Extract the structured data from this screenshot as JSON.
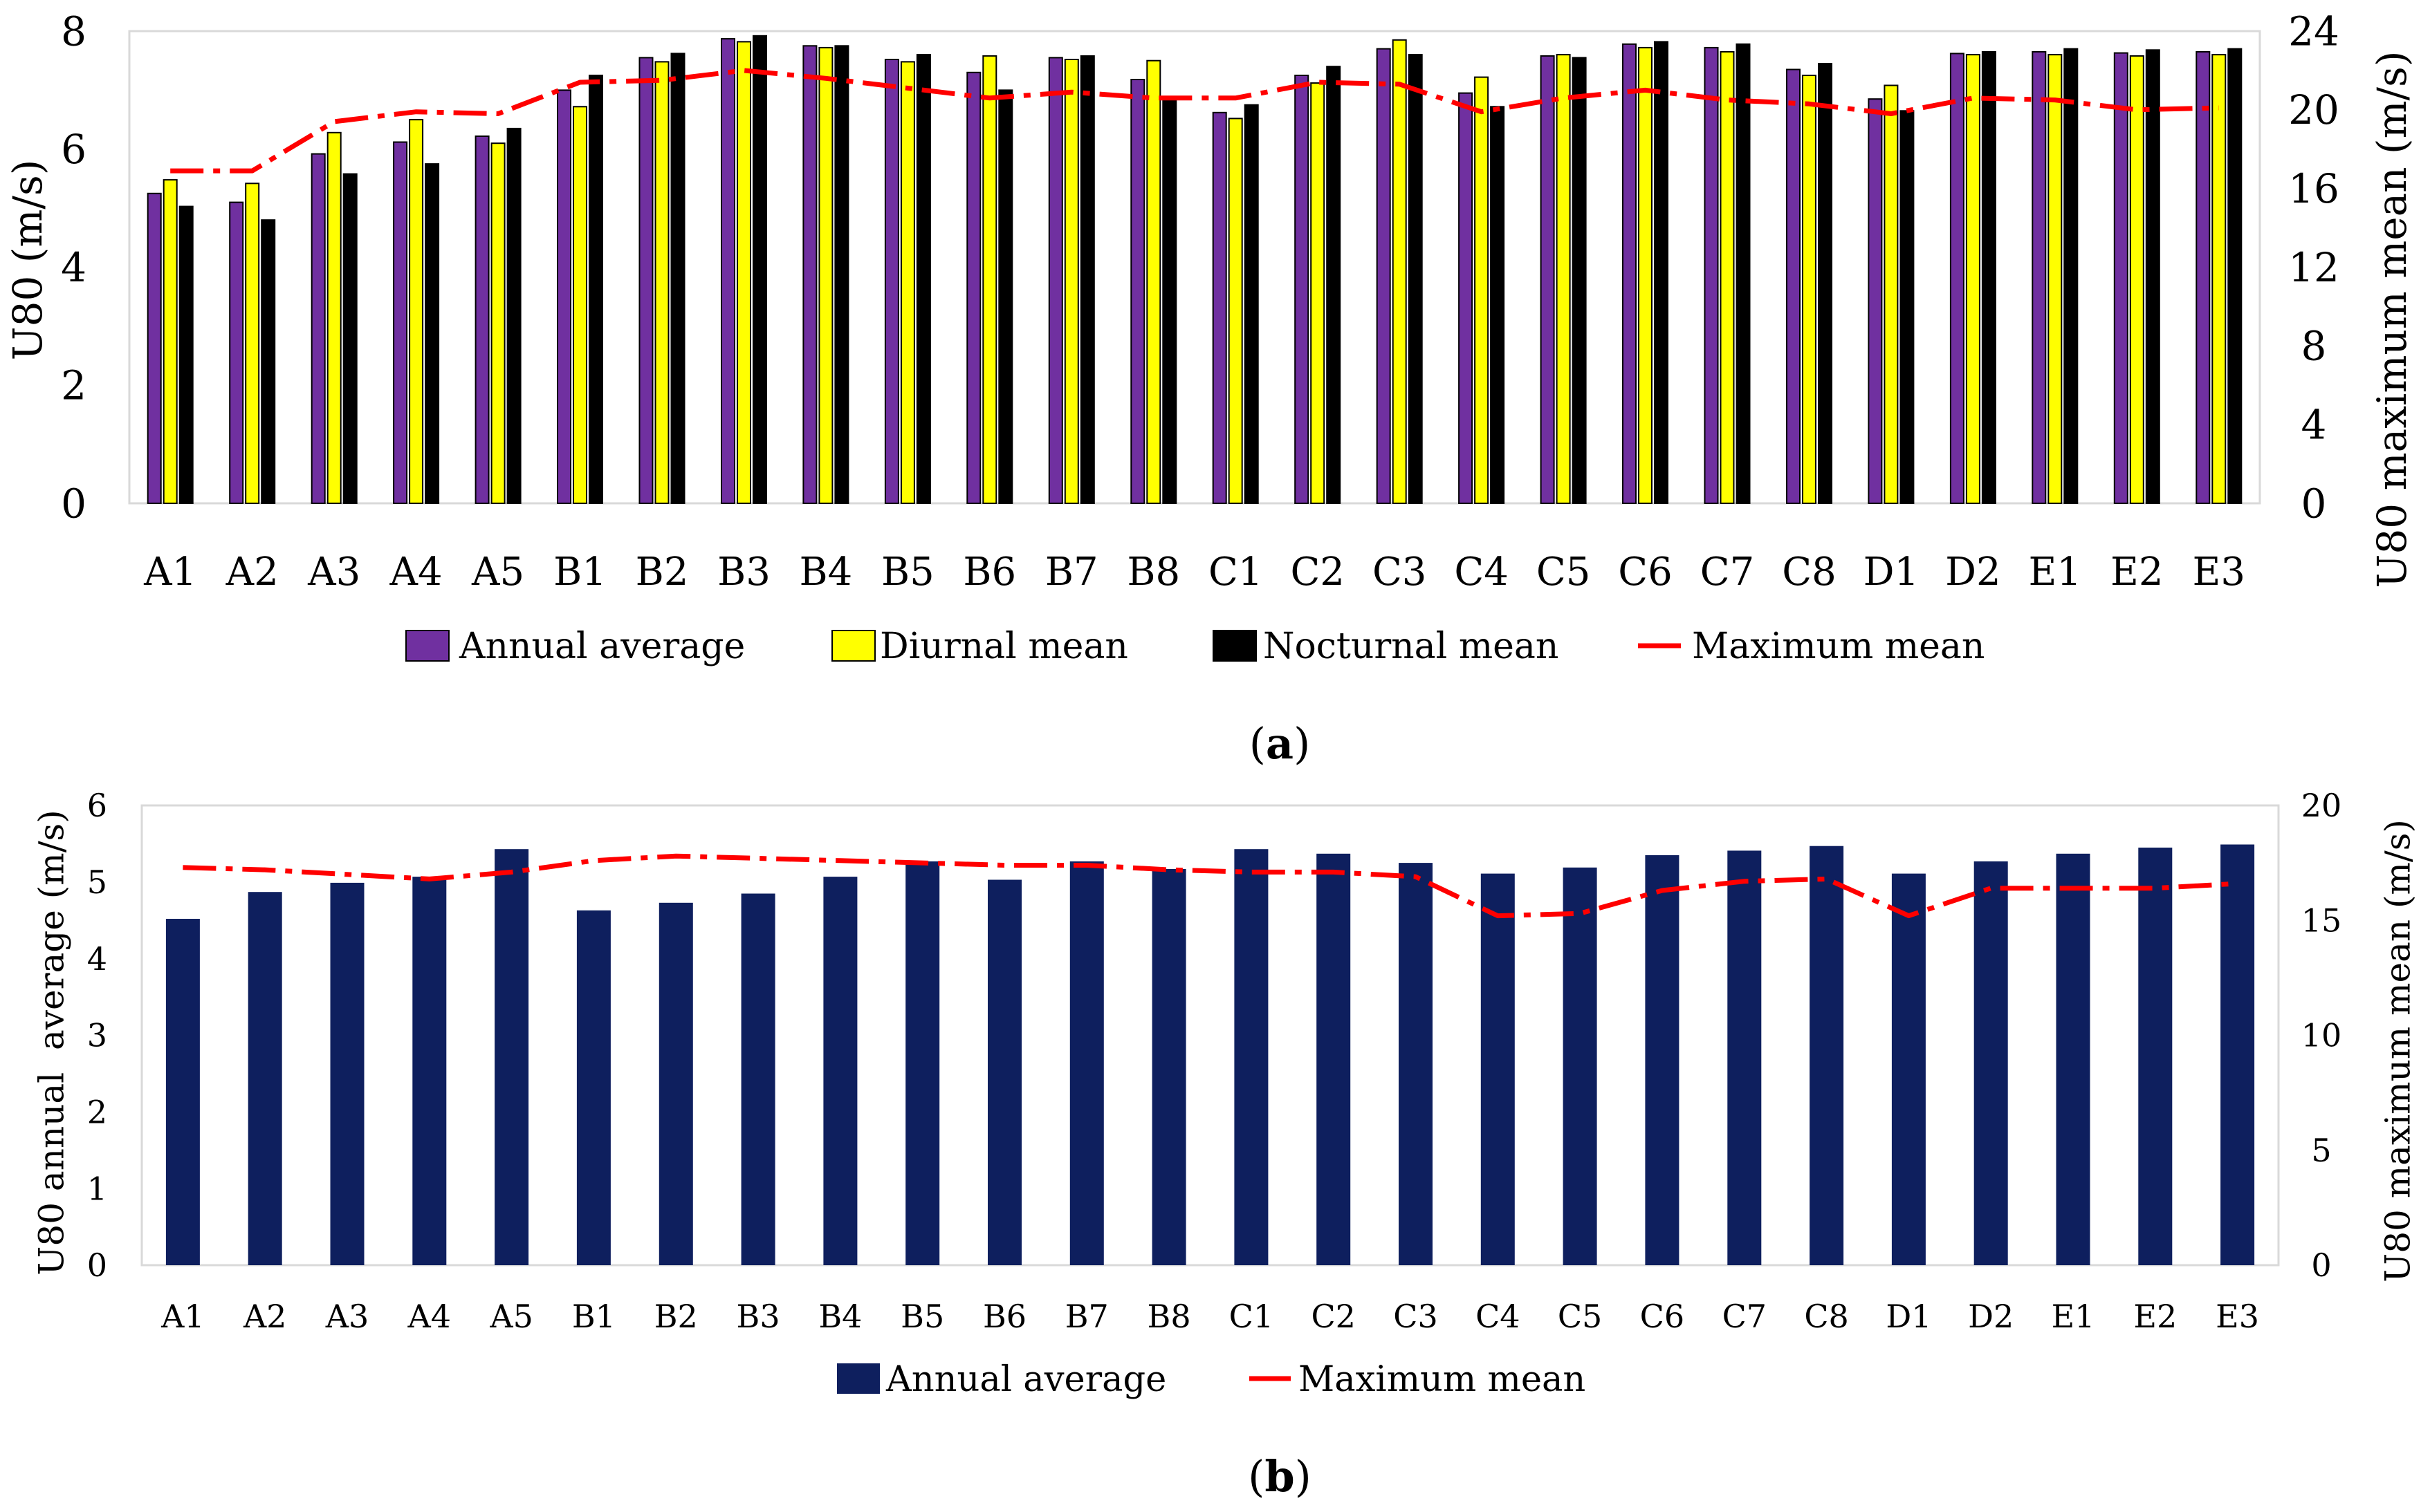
{
  "chart_data": [
    {
      "type": "bar",
      "panel_label": "(a)",
      "categories": [
        "A1",
        "A2",
        "A3",
        "A4",
        "A5",
        "B1",
        "B2",
        "B3",
        "B4",
        "B5",
        "B6",
        "B7",
        "B8",
        "C1",
        "C2",
        "C3",
        "C4",
        "C5",
        "C6",
        "C7",
        "C8",
        "D1",
        "D2",
        "E1",
        "E2",
        "E3"
      ],
      "ylabel": "U80 (m/s)",
      "ylim": [
        0,
        8
      ],
      "yticks": [
        0,
        2,
        4,
        6,
        8
      ],
      "y2label": "U80 maximum mean (m/s)",
      "y2lim": [
        0,
        24
      ],
      "y2ticks": [
        0,
        4,
        8,
        12,
        16,
        20,
        24
      ],
      "grid": false,
      "series": [
        {
          "name": "Annual average",
          "color": "#7030A0",
          "values": [
            5.25,
            5.1,
            5.92,
            6.12,
            6.22,
            7.0,
            7.55,
            7.87,
            7.75,
            7.52,
            7.3,
            7.55,
            7.18,
            6.62,
            7.25,
            7.7,
            6.95,
            7.58,
            7.78,
            7.72,
            7.35,
            6.85,
            7.62,
            7.65,
            7.63,
            7.65
          ]
        },
        {
          "name": "Diurnal mean",
          "color": "#FFFF00",
          "values": [
            5.48,
            5.42,
            6.28,
            6.5,
            6.1,
            6.72,
            7.48,
            7.82,
            7.72,
            7.48,
            7.58,
            7.52,
            7.5,
            6.52,
            7.12,
            7.85,
            7.22,
            7.6,
            7.72,
            7.65,
            7.25,
            7.08,
            7.6,
            7.6,
            7.58,
            7.6
          ]
        },
        {
          "name": "Nocturnal mean",
          "color": "#000000",
          "values": [
            5.03,
            4.8,
            5.58,
            5.75,
            6.35,
            7.25,
            7.62,
            7.92,
            7.75,
            7.6,
            7.0,
            7.58,
            6.83,
            6.75,
            7.4,
            7.6,
            6.72,
            7.55,
            7.82,
            7.78,
            7.45,
            6.65,
            7.65,
            7.7,
            7.68,
            7.7
          ]
        }
      ],
      "y2_series": [
        {
          "name": "Maximum mean",
          "color": "#FF0000",
          "values": [
            16.9,
            16.9,
            19.4,
            19.9,
            19.8,
            21.4,
            21.5,
            22.0,
            21.6,
            21.1,
            20.6,
            20.9,
            20.6,
            20.6,
            21.4,
            21.3,
            19.9,
            20.6,
            21.0,
            20.5,
            20.3,
            19.8,
            20.6,
            20.5,
            20.0,
            20.1
          ]
        }
      ]
    },
    {
      "type": "bar",
      "panel_label": "(b)",
      "categories": [
        "A1",
        "A2",
        "A3",
        "A4",
        "A5",
        "B1",
        "B2",
        "B3",
        "B4",
        "B5",
        "B6",
        "B7",
        "B8",
        "C1",
        "C2",
        "C3",
        "C4",
        "C5",
        "C6",
        "C7",
        "C8",
        "D1",
        "D2",
        "E1",
        "E2",
        "E3"
      ],
      "ylabel": "U80 annual  average (m/s)",
      "ylim": [
        0,
        6
      ],
      "yticks": [
        0,
        1,
        2,
        3,
        4,
        5,
        6
      ],
      "y2label": "U80 maximum mean (m/s)",
      "y2lim": [
        0,
        20
      ],
      "y2ticks": [
        0,
        5,
        10,
        15,
        20
      ],
      "grid": false,
      "series": [
        {
          "name": "Annual average",
          "color": "#0E1F5E",
          "values": [
            4.52,
            4.87,
            4.99,
            5.07,
            5.43,
            4.63,
            4.73,
            4.85,
            5.07,
            5.27,
            5.03,
            5.27,
            5.17,
            5.43,
            5.37,
            5.25,
            5.11,
            5.19,
            5.35,
            5.41,
            5.47,
            5.11,
            5.27,
            5.37,
            5.45,
            5.49
          ]
        }
      ],
      "y2_series": [
        {
          "name": "Maximum mean",
          "color": "#FF0000",
          "values": [
            17.3,
            17.2,
            17.0,
            16.8,
            17.1,
            17.6,
            17.8,
            17.7,
            17.6,
            17.5,
            17.4,
            17.4,
            17.2,
            17.1,
            17.1,
            16.9,
            15.2,
            15.3,
            16.3,
            16.7,
            16.8,
            15.2,
            16.4,
            16.4,
            16.4,
            16.6
          ]
        }
      ]
    }
  ]
}
